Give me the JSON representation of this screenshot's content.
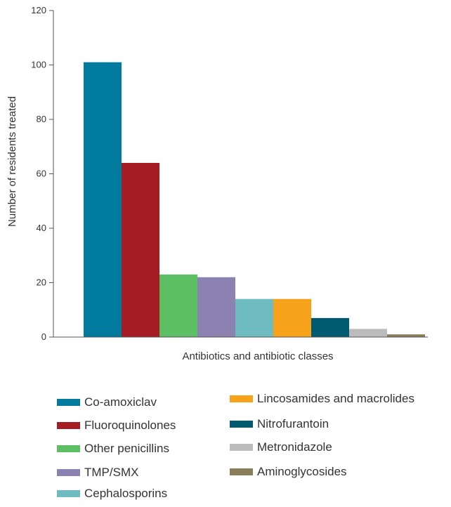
{
  "chart_data": {
    "type": "bar",
    "title": "",
    "xlabel": "Antibiotics and antibiotic classes",
    "ylabel": "Number of residents treated",
    "ylim": [
      0,
      120
    ],
    "yticks": [
      "0",
      "20",
      "40",
      "60",
      "80",
      "100",
      "120"
    ],
    "grid": false,
    "legend_position": "bottom",
    "categories": [
      "Co-amoxiclav",
      "Fluoroquinolones",
      "Other penicillins",
      "TMP/SMX",
      "Cephalosporins",
      "Lincosamides and macrolides",
      "Nitrofurantoin",
      "Metronidazole",
      "Aminoglycosides"
    ],
    "values": [
      101,
      64,
      23,
      22,
      14,
      14,
      7,
      3,
      1
    ],
    "colors": [
      "#007b9d",
      "#a51c22",
      "#5cbf64",
      "#8b82b2",
      "#6ebcc0",
      "#f7a21b",
      "#005a70",
      "#bcbcbc",
      "#8a7d5a"
    ]
  }
}
